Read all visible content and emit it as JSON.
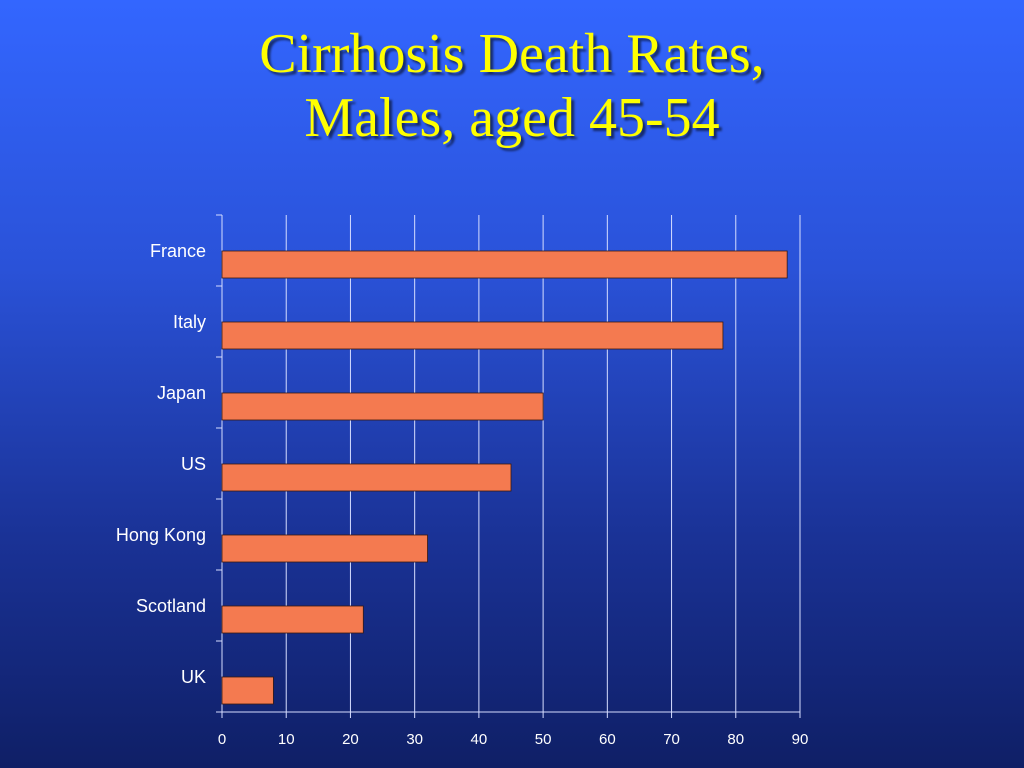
{
  "title": {
    "line1": "Cirrhosis Death Rates,",
    "line2": "Males, aged 45-54"
  },
  "chart_data": {
    "type": "bar",
    "orientation": "horizontal",
    "categories": [
      "France",
      "Italy",
      "Japan",
      "US",
      "Hong Kong",
      "Scotland",
      "UK"
    ],
    "values": [
      88,
      78,
      50,
      45,
      32,
      22,
      8
    ],
    "xlim": [
      0,
      90
    ],
    "xticks": [
      0,
      10,
      20,
      30,
      40,
      50,
      60,
      70,
      80,
      90
    ],
    "grid": true,
    "bar_color": "#f47a50",
    "grid_color": "#d6ddff",
    "title": "Cirrhosis Death Rates, Males, aged 45-54",
    "xlabel": "",
    "ylabel": ""
  },
  "colors": {
    "title": "#ffff00",
    "background_top": "#3366ff",
    "background_bottom": "#0f1f66"
  }
}
